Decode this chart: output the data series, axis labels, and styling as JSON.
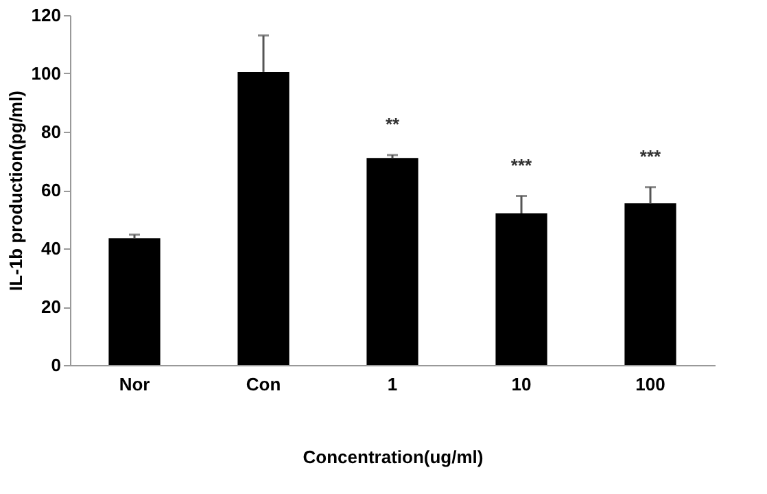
{
  "chart_data": {
    "type": "bar",
    "xlabel": "Concentration(ug/ml)",
    "ylabel": "IL-1b production(pg/ml)",
    "categories": [
      "Nor",
      "Con",
      "1",
      "10",
      "100"
    ],
    "values": [
      43.5,
      100.5,
      71,
      52,
      55.5
    ],
    "errors": [
      [
        43.5,
        44.7
      ],
      [
        100.5,
        113
      ],
      [
        71,
        72
      ],
      [
        52,
        58
      ],
      [
        55.5,
        61
      ]
    ],
    "color": "#000000",
    "ylim": [
      0,
      120
    ],
    "yticks": [
      0,
      20,
      40,
      60,
      80,
      100,
      120
    ],
    "grid": false,
    "annotations": [
      "**",
      "***",
      "***"
    ]
  }
}
